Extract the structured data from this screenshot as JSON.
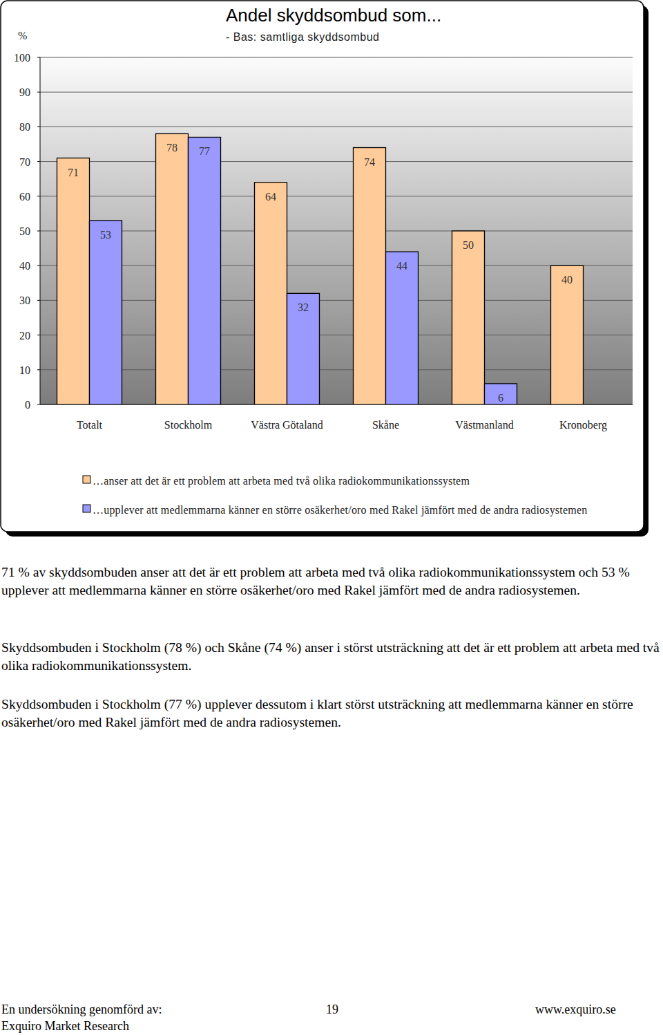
{
  "chart_data": {
    "type": "bar",
    "title": "Andel skyddsombud som...",
    "subtitle": "- Bas: samtliga skyddsombud",
    "y_label": "%",
    "categories": [
      "Totalt",
      "Stockholm",
      "Västra Götaland",
      "Skåne",
      "Västmanland",
      "Kronoberg"
    ],
    "series": [
      {
        "name": "…anser att det är ett problem att arbeta med två olika radiokommunikationssystem",
        "color": "#ffcc99",
        "values": [
          71,
          78,
          64,
          74,
          50,
          40
        ]
      },
      {
        "name": "…upplever att medlemmarna känner en större osäkerhet/oro med Rakel jämfört med de andra radiosystemen",
        "color": "#9999ff",
        "values": [
          53,
          77,
          32,
          44,
          6,
          null
        ]
      }
    ],
    "ylim": [
      0,
      100
    ],
    "yticks": [
      0,
      10,
      20,
      30,
      40,
      50,
      60,
      70,
      80,
      90,
      100
    ],
    "grid": true,
    "data_labels": true,
    "legend": "bottom"
  },
  "text": {
    "paragraphs": [
      "71 % av skyddsombuden anser att det är ett problem att arbeta med två olika radiokommunikationssystem och 53 % upplever att medlemmarna känner en större osäkerhet/oro med Rakel jämfört med de andra radiosystemen.",
      "Skyddsombuden i Stockholm (78 %) och Skåne (74 %) anser i störst utsträckning att det är ett problem att arbeta med två olika radiokommunikationssystem.",
      "Skyddsombuden i Stockholm (77 %) upplever dessutom i klart störst utsträckning att medlemmarna känner en större osäkerhet/oro med Rakel jämfört med de andra radiosystemen."
    ],
    "footer": {
      "left": "En undersökning genomförd av:",
      "page": 19,
      "url": "www.exquiro.se",
      "company": "Exquiro Market Research"
    }
  }
}
